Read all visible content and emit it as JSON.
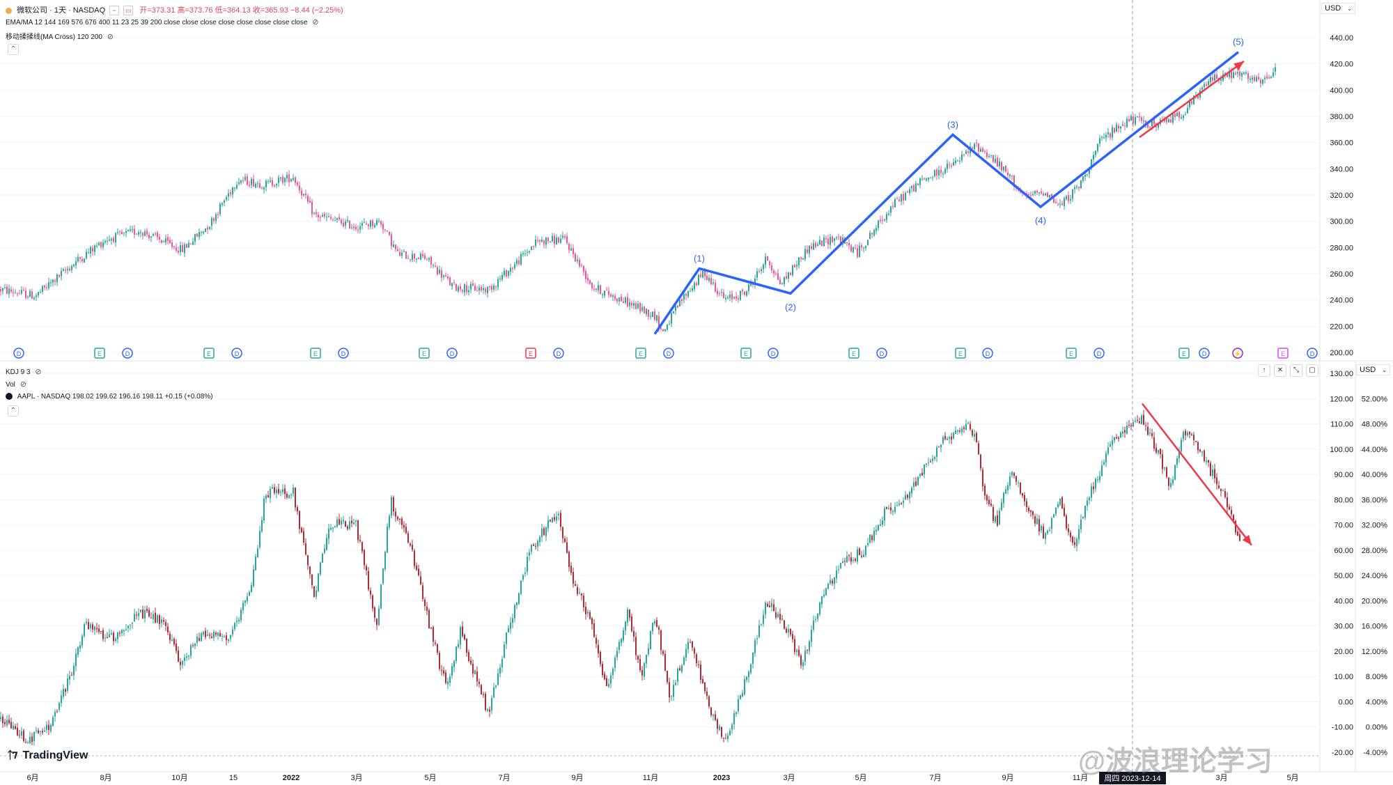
{
  "header_top": {
    "symbol_line": "微软公司 · 1天 · NASDAQ",
    "ohlc": "开=373.31 高=373.76 低=364.13 收=365.93 −8.44 (−2.25%)",
    "ema_line": "EMA/MA 12 144 169 576 676 400 11 23 25 39 200 close close close close close close close close",
    "ma_cross_line": "移动揉揉线(MA Cross) 120 200",
    "currency": "USD"
  },
  "header_bottom": {
    "kdj_line": "KDJ 9 3",
    "vol_line": "Vol",
    "symbol_line": "AAPL · NASDAQ  198.02  199.62  196.16  198.11  +0.15 (+0.08%)",
    "currency": "USD"
  },
  "branding": {
    "logo_text": "TradingView",
    "watermark": "@波浪理论学习"
  },
  "x_axis": {
    "ticks": [
      {
        "label": "6月",
        "x": 47
      },
      {
        "label": "8月",
        "x": 152
      },
      {
        "label": "10月",
        "x": 258
      },
      {
        "label": "15",
        "x": 335
      },
      {
        "label": "2022",
        "x": 418
      },
      {
        "label": "3月",
        "x": 512
      },
      {
        "label": "5月",
        "x": 618
      },
      {
        "label": "7月",
        "x": 724
      },
      {
        "label": "9月",
        "x": 829
      },
      {
        "label": "11月",
        "x": 934
      },
      {
        "label": "2023",
        "x": 1036
      },
      {
        "label": "3月",
        "x": 1133
      },
      {
        "label": "5月",
        "x": 1236
      },
      {
        "label": "7月",
        "x": 1343
      },
      {
        "label": "9月",
        "x": 1447
      },
      {
        "label": "11月",
        "x": 1551
      },
      {
        "label": "3月",
        "x": 1754
      },
      {
        "label": "5月",
        "x": 1856
      }
    ],
    "crosshair_label": "周四 2023-12-14"
  },
  "chart_data": [
    {
      "type": "candlestick",
      "symbol": "微软公司 · 1天 · NASDAQ",
      "ylim": [
        200,
        440
      ],
      "y_ticks": [
        440,
        420,
        400,
        380,
        360,
        340,
        320,
        300,
        280,
        260,
        240,
        220,
        200
      ],
      "path": [
        [
          0,
          248
        ],
        [
          50,
          243
        ],
        [
          110,
          270
        ],
        [
          150,
          286
        ],
        [
          200,
          293
        ],
        [
          260,
          278
        ],
        [
          300,
          298
        ],
        [
          340,
          332
        ],
        [
          380,
          328
        ],
        [
          420,
          334
        ],
        [
          450,
          305
        ],
        [
          510,
          296
        ],
        [
          545,
          300
        ],
        [
          570,
          275
        ],
        [
          610,
          272
        ],
        [
          650,
          250
        ],
        [
          700,
          248
        ],
        [
          740,
          268
        ],
        [
          770,
          285
        ],
        [
          810,
          286
        ],
        [
          850,
          250
        ],
        [
          900,
          238
        ],
        [
          940,
          228
        ],
        [
          950,
          215
        ],
        [
          980,
          242
        ],
        [
          1010,
          261
        ],
        [
          1040,
          240
        ],
        [
          1070,
          246
        ],
        [
          1100,
          272
        ],
        [
          1120,
          252
        ],
        [
          1160,
          280
        ],
        [
          1200,
          288
        ],
        [
          1230,
          276
        ],
        [
          1280,
          312
        ],
        [
          1320,
          330
        ],
        [
          1370,
          344
        ],
        [
          1400,
          358
        ],
        [
          1420,
          350
        ],
        [
          1450,
          333
        ],
        [
          1470,
          318
        ],
        [
          1500,
          323
        ],
        [
          1520,
          311
        ],
        [
          1550,
          328
        ],
        [
          1580,
          362
        ],
        [
          1620,
          378
        ],
        [
          1660,
          373
        ],
        [
          1700,
          384
        ],
        [
          1740,
          410
        ],
        [
          1780,
          412
        ],
        [
          1810,
          405
        ],
        [
          1832,
          416
        ]
      ],
      "wave_labels": [
        {
          "label": "(1)",
          "x": 1004,
          "price": 264
        },
        {
          "label": "(2)",
          "x": 1135,
          "price": 245
        },
        {
          "label": "(3)",
          "x": 1368,
          "price": 366
        },
        {
          "label": "(4)",
          "x": 1494,
          "price": 311
        },
        {
          "label": "(5)",
          "x": 1778,
          "price": 429
        }
      ],
      "wave_points": [
        {
          "x": 940,
          "price": 214
        },
        {
          "x": 1004,
          "price": 264
        },
        {
          "x": 1135,
          "price": 245
        },
        {
          "x": 1368,
          "price": 366
        },
        {
          "x": 1494,
          "price": 311
        },
        {
          "x": 1778,
          "price": 429
        }
      ],
      "trend_arrow": {
        "from": {
          "x": 1636,
          "price": 364
        },
        "to": {
          "x": 1786,
          "price": 422
        }
      },
      "event_markers": [
        {
          "kind": "D",
          "x": 27
        },
        {
          "kind": "E",
          "x": 143
        },
        {
          "kind": "D",
          "x": 183
        },
        {
          "kind": "E",
          "x": 300
        },
        {
          "kind": "D",
          "x": 340
        },
        {
          "kind": "E",
          "x": 453
        },
        {
          "kind": "D",
          "x": 493
        },
        {
          "kind": "E",
          "x": 609
        },
        {
          "kind": "D",
          "x": 649
        },
        {
          "kind": "E!",
          "x": 762
        },
        {
          "kind": "D",
          "x": 802
        },
        {
          "kind": "E",
          "x": 920
        },
        {
          "kind": "D",
          "x": 960
        },
        {
          "kind": "E",
          "x": 1071
        },
        {
          "kind": "D",
          "x": 1110
        },
        {
          "kind": "E",
          "x": 1226
        },
        {
          "kind": "D",
          "x": 1266
        },
        {
          "kind": "E",
          "x": 1379
        },
        {
          "kind": "D",
          "x": 1418
        },
        {
          "kind": "E",
          "x": 1538
        },
        {
          "kind": "D",
          "x": 1578
        },
        {
          "kind": "E",
          "x": 1700
        },
        {
          "kind": "D",
          "x": 1729
        },
        {
          "kind": "S",
          "x": 1777
        },
        {
          "kind": "E2",
          "x": 1842
        },
        {
          "kind": "D",
          "x": 1884
        }
      ]
    },
    {
      "type": "candlestick",
      "symbol": "AAPL · NASDAQ",
      "ylim": [
        -20,
        130
      ],
      "y_ticks": [
        130,
        120,
        110,
        100,
        90,
        80,
        70,
        60,
        50,
        40,
        30,
        20,
        10,
        0,
        -10,
        -20
      ],
      "y_ticks_pct": [
        "52.00%",
        "48.00%",
        "44.00%",
        "40.00%",
        "36.00%",
        "32.00%",
        "28.00%",
        "24.00%",
        "20.00%",
        "16.00%",
        "12.00%",
        "8.00%",
        "4.00%",
        "0.00%",
        "-4.00%"
      ],
      "path": [
        [
          0,
          -7
        ],
        [
          40,
          -15
        ],
        [
          70,
          -10
        ],
        [
          100,
          10
        ],
        [
          120,
          30
        ],
        [
          160,
          25
        ],
        [
          200,
          35
        ],
        [
          230,
          32
        ],
        [
          260,
          15
        ],
        [
          290,
          28
        ],
        [
          330,
          25
        ],
        [
          360,
          45
        ],
        [
          380,
          83
        ],
        [
          420,
          83
        ],
        [
          450,
          40
        ],
        [
          470,
          70
        ],
        [
          510,
          70
        ],
        [
          540,
          30
        ],
        [
          560,
          80
        ],
        [
          590,
          60
        ],
        [
          620,
          25
        ],
        [
          640,
          5
        ],
        [
          660,
          28
        ],
        [
          700,
          -5
        ],
        [
          730,
          30
        ],
        [
          760,
          60
        ],
        [
          800,
          75
        ],
        [
          820,
          50
        ],
        [
          850,
          30
        ],
        [
          870,
          5
        ],
        [
          900,
          35
        ],
        [
          920,
          10
        ],
        [
          940,
          35
        ],
        [
          960,
          2
        ],
        [
          990,
          25
        ],
        [
          1020,
          -5
        ],
        [
          1040,
          -15
        ],
        [
          1060,
          0
        ],
        [
          1080,
          20
        ],
        [
          1100,
          40
        ],
        [
          1130,
          28
        ],
        [
          1150,
          15
        ],
        [
          1180,
          42
        ],
        [
          1210,
          55
        ],
        [
          1240,
          60
        ],
        [
          1270,
          75
        ],
        [
          1300,
          80
        ],
        [
          1330,
          95
        ],
        [
          1360,
          105
        ],
        [
          1390,
          110
        ],
        [
          1400,
          105
        ],
        [
          1410,
          85
        ],
        [
          1430,
          70
        ],
        [
          1450,
          92
        ],
        [
          1480,
          74
        ],
        [
          1500,
          65
        ],
        [
          1520,
          80
        ],
        [
          1540,
          60
        ],
        [
          1560,
          80
        ],
        [
          1600,
          105
        ],
        [
          1620,
          109
        ],
        [
          1640,
          112
        ],
        [
          1660,
          100
        ],
        [
          1680,
          85
        ],
        [
          1700,
          108
        ],
        [
          1730,
          95
        ],
        [
          1760,
          80
        ],
        [
          1780,
          63
        ]
      ],
      "trend_arrow": {
        "from": {
          "x": 1640,
          "price": 118
        },
        "to": {
          "x": 1797,
          "price": 62
        }
      }
    }
  ],
  "colors": {
    "up": "#26a69a",
    "down": "#b22833",
    "down_top": "#ef5396",
    "wave": "#2962ff",
    "arrow": "#f23645",
    "grid": "#f0f3fa",
    "axis_text": "#131722",
    "event_d": "#2962ff",
    "event_e": "#26a69a",
    "event_e_red": "#f23645",
    "event_s": "#9c27b0",
    "event_e2": "#e040fb"
  }
}
